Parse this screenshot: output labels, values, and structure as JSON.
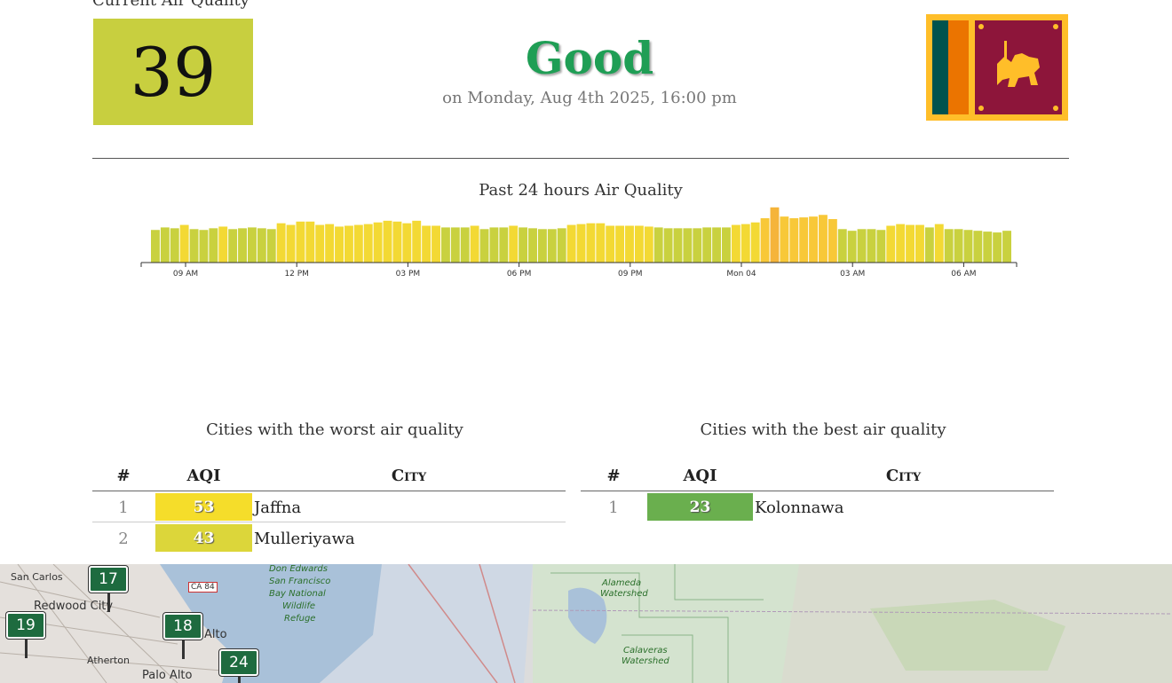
{
  "header": {
    "section_title": "Current Air Quality",
    "aqi_value": "39",
    "aqi_color": "#c8cf3f",
    "level": "Good",
    "timestamp": "on Monday, Aug 4th 2025, 16:00 pm",
    "flag": "sri-lanka-flag"
  },
  "chart_data": {
    "type": "bar",
    "title": "Past 24 hours Air Quality",
    "x_tick_labels": [
      "09 AM",
      "12 PM",
      "03 PM",
      "06 PM",
      "09 PM",
      "Mon 04",
      "03 AM",
      "06 AM"
    ],
    "ylim": [
      0,
      70
    ],
    "values": [
      39,
      42,
      41,
      45,
      40,
      39,
      41,
      43,
      40,
      41,
      42,
      41,
      40,
      47,
      45,
      49,
      49,
      45,
      46,
      43,
      44,
      45,
      46,
      48,
      50,
      49,
      47,
      50,
      44,
      44,
      42,
      42,
      42,
      44,
      40,
      42,
      42,
      44,
      42,
      41,
      40,
      40,
      41,
      45,
      46,
      47,
      47,
      44,
      44,
      44,
      44,
      43,
      42,
      41,
      41,
      41,
      41,
      42,
      42,
      42,
      45,
      46,
      48,
      53,
      66,
      55,
      53,
      54,
      55,
      57,
      52,
      40,
      38,
      40,
      40,
      39,
      44,
      46,
      45,
      45,
      42,
      46,
      40,
      40,
      39,
      38,
      37,
      36,
      38
    ],
    "grid": false
  },
  "worst": {
    "title": "Cities with the worst air quality",
    "columns": {
      "rank": "#",
      "aqi": "AQI",
      "city": "City"
    },
    "rows": [
      {
        "rank": "1",
        "aqi": "53",
        "city": "Jaffna",
        "color": "#f5dd2a"
      },
      {
        "rank": "2",
        "aqi": "43",
        "city": "Mulleriyawa",
        "color": "#dcd63a"
      }
    ]
  },
  "best": {
    "title": "Cities with the best air quality",
    "columns": {
      "rank": "#",
      "aqi": "AQI",
      "city": "City"
    },
    "rows": [
      {
        "rank": "1",
        "aqi": "23",
        "city": "Kolonnawa",
        "color": "#6aaf4e"
      }
    ]
  },
  "map": {
    "markers": [
      "17",
      "18",
      "19",
      "24"
    ],
    "labels": {
      "san_carlos": "San Carlos",
      "redwood_city": "Redwood City",
      "atherton": "Atherton",
      "palo_alto": "Palo Alto",
      "alto": "Alto",
      "don_edwards": "Don Edwards",
      "san_francisco": "San Francisco",
      "bay_national": "Bay National",
      "wildlife": "Wildlife",
      "refuge": "Refuge",
      "alameda": "Alameda",
      "watershed1": "Watershed",
      "calaveras": "Calaveras",
      "watershed2": "Watershed",
      "ca84": "CA 84"
    }
  }
}
